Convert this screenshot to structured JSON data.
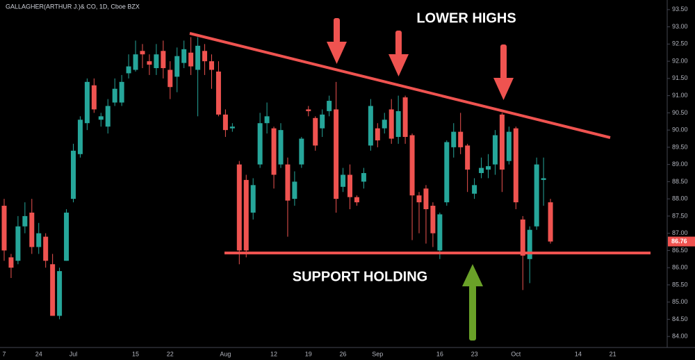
{
  "chart_data": {
    "type": "candlestick",
    "title": "GALLAGHER(ARTHUR J.)& CO, 1D, Cboe BZX",
    "annotations": [
      "LOWER HIGHS",
      "SUPPORT HOLDING"
    ],
    "up_color": "#26a69a",
    "down_color": "#ef5350",
    "ylim": [
      83.68,
      93.78
    ],
    "yticks": [
      {
        "value": 84,
        "label": "84.00"
      },
      {
        "value": 84.5,
        "label": "84.50"
      },
      {
        "value": 85,
        "label": "85.00"
      },
      {
        "value": 85.5,
        "label": "85.50"
      },
      {
        "value": 86,
        "label": "86.00"
      },
      {
        "value": 86.5,
        "label": "86.50"
      },
      {
        "value": 87,
        "label": "87.00"
      },
      {
        "value": 87.5,
        "label": "87.50"
      },
      {
        "value": 88,
        "label": "88.00"
      },
      {
        "value": 88.5,
        "label": "88.50"
      },
      {
        "value": 89,
        "label": "89.00"
      },
      {
        "value": 89.5,
        "label": "89.50"
      },
      {
        "value": 90,
        "label": "90.00"
      },
      {
        "value": 90.5,
        "label": "90.50"
      },
      {
        "value": 91,
        "label": "91.00"
      },
      {
        "value": 91.5,
        "label": "91.50"
      },
      {
        "value": 92,
        "label": "92.00"
      },
      {
        "value": 92.5,
        "label": "92.50"
      },
      {
        "value": 93,
        "label": "93.00"
      },
      {
        "value": 93.5,
        "label": "93.50"
      }
    ],
    "categories": [
      "7",
      null,
      null,
      null,
      null,
      "24",
      null,
      null,
      null,
      null,
      "Jul",
      null,
      null,
      null,
      null,
      null,
      null,
      null,
      null,
      "15",
      null,
      null,
      null,
      null,
      "22",
      null,
      null,
      null,
      null,
      null,
      null,
      null,
      "Aug",
      null,
      null,
      null,
      null,
      null,
      null,
      "12",
      null,
      null,
      null,
      null,
      "19",
      null,
      null,
      null,
      null,
      "26",
      null,
      null,
      null,
      null,
      "Sep",
      null,
      null,
      null,
      null,
      null,
      null,
      null,
      null,
      "16",
      null,
      null,
      null,
      null,
      "23",
      null,
      null,
      null,
      null,
      null,
      "Oct",
      null,
      null,
      null,
      null,
      null,
      null,
      null,
      null,
      "14",
      null,
      null,
      null,
      null,
      "21"
    ],
    "open": [
      87.8,
      86.3,
      86.2,
      87.2,
      87.6,
      86.6,
      86.9,
      86.1,
      84.6,
      86.2,
      88.0,
      89.3,
      90.2,
      91.3,
      90.3,
      90.1,
      90.8,
      90.8,
      91.65,
      91.75,
      92.3,
      92.0,
      91.8,
      92.3,
      91.75,
      91.55,
      91.95,
      92.25,
      91.75,
      92.3,
      92.0,
      91.7,
      90.45,
      90.05,
      89.0,
      88.55,
      87.6,
      89.0,
      90.2,
      90.05,
      89.0,
      89.0,
      88.0,
      89.0,
      90.6,
      90.35,
      90.05,
      90.55,
      90.6,
      88.35,
      88.7,
      88.05,
      88.5,
      89.55,
      90.05,
      90.05,
      90.6,
      89.8,
      90.95,
      89.85,
      88.1,
      88.3,
      87.8,
      86.5,
      87.9,
      89.5,
      89.95,
      89.55,
      88.15,
      88.75,
      88.85,
      89.0,
      90.45,
      89.1,
      90.05,
      87.4,
      86.25,
      87.2,
      88.55,
      87.9,
      null,
      null,
      null,
      null,
      null,
      null,
      null,
      null,
      null
    ],
    "high": [
      88.0,
      86.4,
      87.5,
      87.9,
      88.0,
      87.3,
      87.0,
      86.4,
      86.0,
      87.7,
      89.6,
      90.4,
      91.5,
      91.5,
      90.5,
      90.9,
      91.5,
      91.6,
      92.2,
      92.6,
      92.5,
      92.2,
      92.5,
      92.6,
      92.0,
      92.4,
      92.6,
      92.7,
      92.7,
      92.5,
      92.2,
      92.0,
      90.6,
      90.2,
      89.1,
      88.7,
      88.6,
      90.5,
      90.8,
      90.1,
      90.2,
      89.2,
      88.8,
      89.8,
      90.7,
      90.4,
      90.6,
      91.0,
      91.4,
      88.9,
      89.0,
      88.1,
      88.9,
      90.9,
      90.2,
      90.5,
      90.9,
      91.0,
      91.0,
      89.9,
      88.2,
      88.4,
      87.9,
      87.6,
      89.7,
      90.2,
      90.5,
      89.6,
      88.6,
      89.2,
      89.3,
      90.0,
      90.5,
      90.1,
      90.1,
      87.5,
      87.2,
      89.2,
      89.2,
      88.0,
      null,
      null,
      null,
      null,
      null,
      null,
      null,
      null,
      null
    ],
    "low": [
      86.2,
      85.7,
      86.1,
      87.0,
      86.4,
      86.4,
      86.0,
      84.6,
      84.5,
      86.2,
      87.9,
      89.2,
      90.0,
      90.5,
      90.1,
      89.9,
      90.7,
      90.7,
      91.5,
      91.7,
      91.8,
      91.6,
      91.6,
      91.5,
      90.9,
      91.1,
      91.8,
      91.6,
      90.4,
      91.6,
      91.2,
      90.4,
      89.8,
      89.95,
      86.1,
      86.3,
      87.4,
      88.9,
      89.9,
      88.3,
      88.9,
      86.9,
      87.8,
      88.9,
      90.4,
      89.4,
      89.8,
      90.4,
      87.6,
      88.2,
      87.7,
      87.8,
      88.3,
      89.4,
      89.5,
      89.9,
      89.6,
      89.6,
      89.6,
      86.8,
      87.0,
      86.7,
      86.6,
      86.25,
      87.8,
      89.2,
      89.3,
      88.2,
      88.0,
      88.6,
      88.6,
      88.7,
      88.2,
      89.0,
      87.7,
      85.35,
      85.55,
      87.1,
      87.8,
      86.7,
      null,
      null,
      null,
      null,
      null,
      null,
      null,
      null,
      null
    ],
    "close": [
      86.5,
      86.0,
      87.2,
      87.5,
      86.6,
      87.0,
      86.2,
      84.6,
      85.9,
      87.6,
      89.4,
      90.3,
      91.4,
      90.6,
      90.4,
      90.7,
      91.2,
      91.4,
      91.85,
      92.2,
      92.2,
      91.9,
      92.2,
      91.8,
      91.25,
      92.15,
      92.35,
      91.85,
      92.45,
      92.0,
      91.75,
      90.45,
      90.0,
      90.1,
      86.5,
      86.5,
      88.4,
      90.2,
      90.4,
      88.7,
      90.0,
      87.95,
      88.5,
      89.75,
      90.55,
      89.55,
      90.45,
      90.85,
      88.0,
      88.7,
      88.05,
      87.9,
      88.75,
      90.7,
      89.7,
      90.3,
      89.75,
      90.55,
      89.8,
      88.1,
      87.9,
      87.7,
      87.0,
      87.55,
      89.65,
      89.95,
      89.5,
      88.85,
      88.4,
      88.9,
      88.95,
      89.85,
      88.85,
      89.95,
      87.9,
      86.35,
      87.1,
      89.0,
      88.6,
      86.76,
      null,
      null,
      null,
      null,
      null,
      null,
      null,
      null,
      null
    ]
  }
}
